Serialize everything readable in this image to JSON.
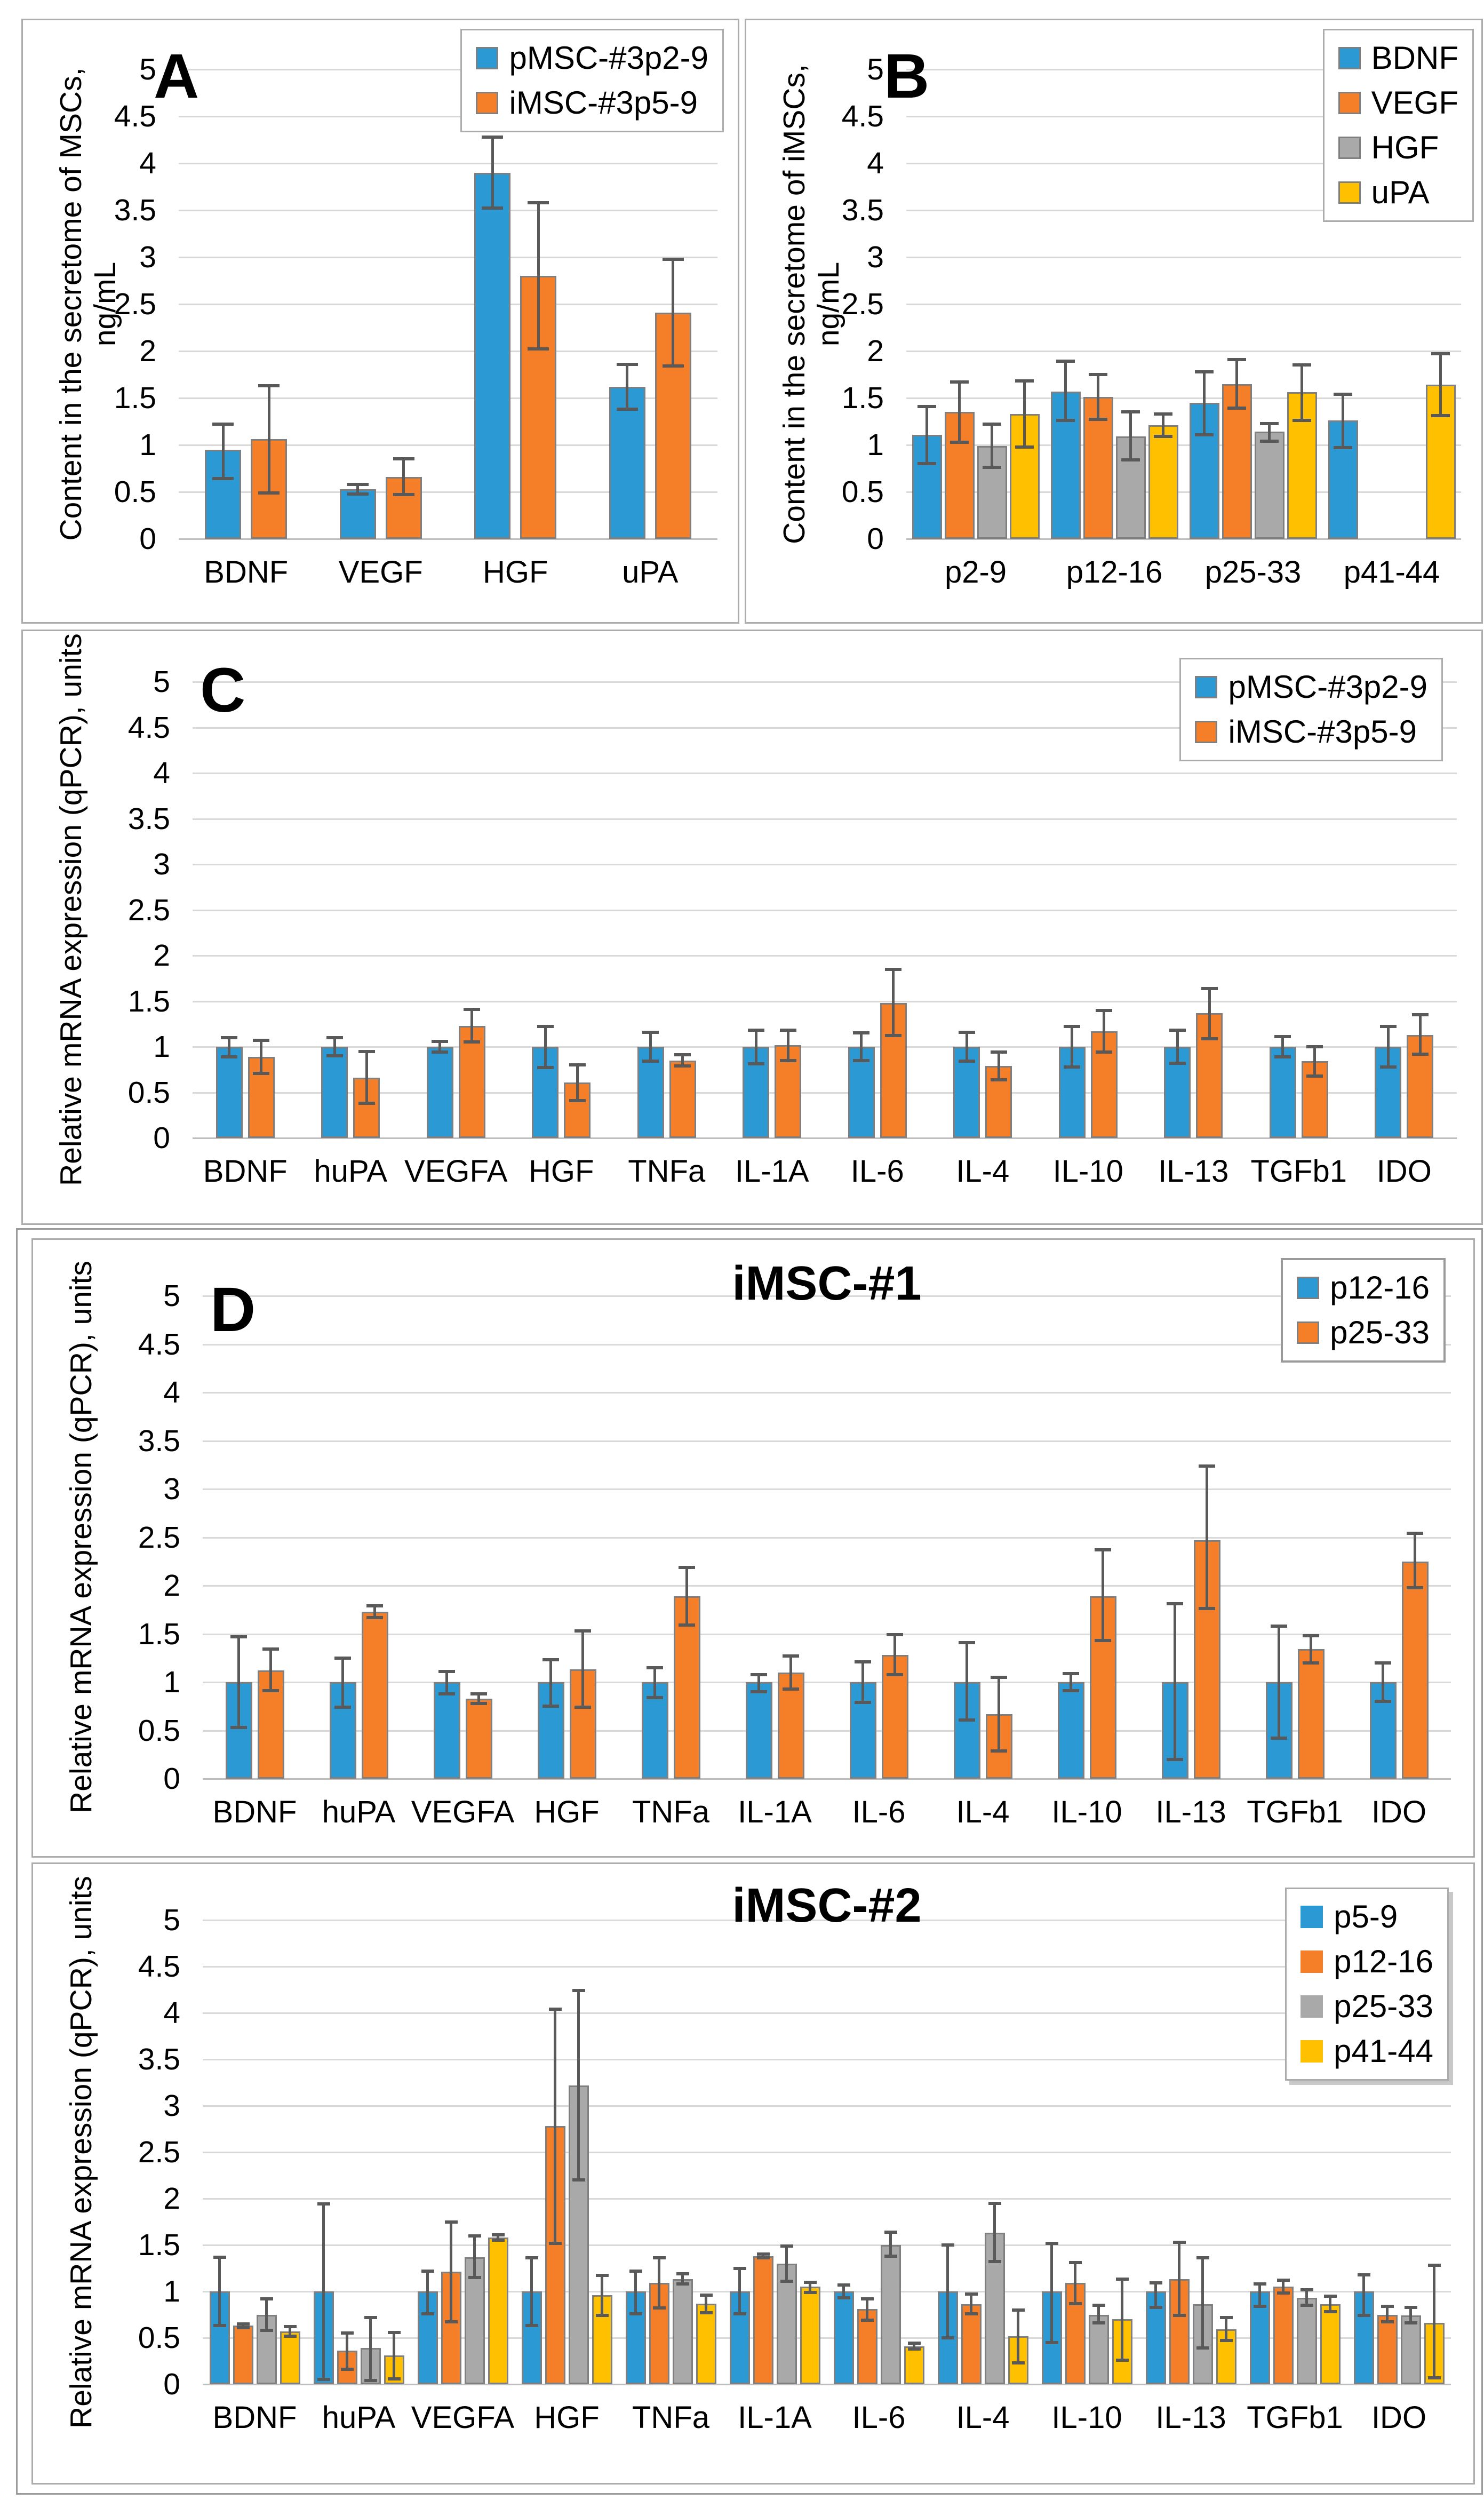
{
  "figure": {
    "description_labels": [
      "A",
      "B",
      "C",
      "D"
    ],
    "y_axis_range_all_panels": [
      0,
      5
    ],
    "y_tick_step": 0.5
  },
  "colors": {
    "blue": "#2B99D4",
    "orange": "#F57E28",
    "gray": "#A9A9A9",
    "yellow": "#FFC000",
    "bar_outline": "#7F7F7F",
    "error_bar": "#595959",
    "gridline": "#D9D9D9",
    "panel_border": "#ACACAC"
  },
  "chart_data": [
    {
      "id": "A",
      "type": "bar",
      "letter": "A",
      "title": "",
      "ylabel": "Content in the secretome of MSCs, ng/mL",
      "ylim": [
        0,
        5
      ],
      "ytick_step": 0.5,
      "grid": true,
      "legend_position": "top-right",
      "categories": [
        "BDNF",
        "VEGF",
        "HGF",
        "uPA"
      ],
      "series": [
        {
          "name": "pMSC-#3p2-9",
          "color": "blue",
          "values": [
            0.95,
            0.53,
            3.9,
            1.62
          ],
          "err_lo": [
            0.64,
            0.48,
            3.52,
            1.38
          ],
          "err_hi": [
            1.22,
            0.58,
            4.28,
            1.86
          ]
        },
        {
          "name": "iMSC-#3p5-9",
          "color": "orange",
          "values": [
            1.06,
            0.66,
            2.8,
            2.41
          ],
          "err_lo": [
            0.49,
            0.47,
            2.02,
            1.84
          ],
          "err_hi": [
            1.63,
            0.85,
            3.58,
            2.98
          ]
        }
      ]
    },
    {
      "id": "B",
      "type": "bar",
      "letter": "B",
      "title": "",
      "ylabel": "Content in the secretome of iMSCs, ng/mL",
      "ylim": [
        0,
        5
      ],
      "ytick_step": 0.5,
      "grid": true,
      "legend_position": "top-right",
      "categories": [
        "p2-9",
        "p12-16",
        "p25-33",
        "p41-44"
      ],
      "series": [
        {
          "name": "BDNF",
          "color": "blue",
          "values": [
            1.11,
            1.57,
            1.45,
            1.26
          ],
          "err_lo": [
            0.8,
            1.26,
            1.11,
            0.97
          ],
          "err_hi": [
            1.41,
            1.89,
            1.78,
            1.54
          ]
        },
        {
          "name": "VEGF",
          "color": "orange",
          "values": [
            1.35,
            1.51,
            1.65,
            null
          ],
          "err_lo": [
            1.03,
            1.27,
            1.39,
            null
          ],
          "err_hi": [
            1.67,
            1.75,
            1.91,
            null
          ]
        },
        {
          "name": "HGF",
          "color": "gray",
          "values": [
            0.99,
            1.09,
            1.14,
            null
          ],
          "err_lo": [
            0.76,
            0.84,
            1.04,
            null
          ],
          "err_hi": [
            1.22,
            1.35,
            1.23,
            null
          ]
        },
        {
          "name": "uPA",
          "color": "yellow",
          "values": [
            1.33,
            1.21,
            1.56,
            1.64
          ],
          "err_lo": [
            0.98,
            1.09,
            1.26,
            1.31
          ],
          "err_hi": [
            1.68,
            1.33,
            1.85,
            1.97
          ]
        }
      ]
    },
    {
      "id": "C",
      "type": "bar",
      "letter": "C",
      "title": "",
      "ylabel": "Relative mRNA expression (qPCR), units",
      "ylim": [
        0,
        5
      ],
      "ytick_step": 0.5,
      "grid": true,
      "legend_position": "top-right",
      "categories": [
        "BDNF",
        "huPA",
        "VEGFA",
        "HGF",
        "TNFa",
        "IL-1A",
        "IL-6",
        "IL-4",
        "IL-10",
        "IL-13",
        "TGFb1",
        "IDO"
      ],
      "series": [
        {
          "name": "pMSC-#3p2-9",
          "color": "blue",
          "values": [
            1.0,
            1.0,
            1.0,
            1.0,
            1.0,
            1.0,
            1.0,
            1.0,
            1.0,
            1.0,
            1.0,
            1.0
          ],
          "err_lo": [
            0.89,
            0.9,
            0.94,
            0.77,
            0.84,
            0.81,
            0.85,
            0.84,
            0.78,
            0.82,
            0.89,
            0.78
          ],
          "err_hi": [
            1.1,
            1.1,
            1.06,
            1.22,
            1.16,
            1.18,
            1.15,
            1.16,
            1.22,
            1.18,
            1.11,
            1.22
          ]
        },
        {
          "name": "iMSC-#3p5-9",
          "color": "orange",
          "values": [
            0.89,
            0.66,
            1.23,
            0.61,
            0.85,
            1.02,
            1.48,
            0.79,
            1.17,
            1.37,
            0.84,
            1.13
          ],
          "err_lo": [
            0.71,
            0.38,
            1.05,
            0.41,
            0.79,
            0.85,
            1.12,
            0.64,
            0.94,
            1.09,
            0.68,
            0.92
          ],
          "err_hi": [
            1.07,
            0.95,
            1.41,
            0.8,
            0.91,
            1.18,
            1.85,
            0.94,
            1.4,
            1.64,
            1.0,
            1.35
          ]
        }
      ]
    },
    {
      "id": "D",
      "type": "bar",
      "letter": "D",
      "title": "iMSC-#1",
      "ylabel": "Relative mRNA expression (qPCR), units",
      "ylim": [
        0,
        5
      ],
      "ytick_step": 0.5,
      "grid": true,
      "legend_position": "top-right",
      "categories": [
        "BDNF",
        "huPA",
        "VEGFA",
        "HGF",
        "TNFa",
        "IL-1A",
        "IL-6",
        "IL-4",
        "IL-10",
        "IL-13",
        "TGFb1",
        "IDO"
      ],
      "series": [
        {
          "name": "p12-16",
          "color": "blue",
          "values": [
            1.0,
            1.0,
            1.0,
            1.0,
            1.0,
            1.0,
            1.0,
            1.0,
            1.0,
            1.0,
            1.0,
            1.0
          ],
          "err_lo": [
            0.53,
            0.74,
            0.88,
            0.75,
            0.84,
            0.9,
            0.79,
            0.61,
            0.91,
            0.2,
            0.42,
            0.8
          ],
          "err_hi": [
            1.47,
            1.25,
            1.11,
            1.23,
            1.15,
            1.08,
            1.21,
            1.41,
            1.09,
            1.81,
            1.58,
            1.2
          ]
        },
        {
          "name": "p25-33",
          "color": "orange",
          "values": [
            1.12,
            1.73,
            0.83,
            1.13,
            1.89,
            1.1,
            1.28,
            0.67,
            1.89,
            2.47,
            1.34,
            2.25
          ],
          "err_lo": [
            0.91,
            1.67,
            0.78,
            0.74,
            1.59,
            0.93,
            1.08,
            0.29,
            1.43,
            1.76,
            1.2,
            1.98
          ],
          "err_hi": [
            1.34,
            1.79,
            0.88,
            1.53,
            2.19,
            1.27,
            1.49,
            1.05,
            2.37,
            3.24,
            1.48,
            2.54
          ]
        }
      ]
    },
    {
      "id": "E",
      "type": "bar",
      "letter": "",
      "title": "iMSC-#2",
      "ylabel": "Relative mRNA expression (qPCR), units",
      "ylim": [
        0,
        5
      ],
      "ytick_step": 0.5,
      "grid": true,
      "legend_position": "top-right",
      "categories": [
        "BDNF",
        "huPA",
        "VEGFA",
        "HGF",
        "TNFa",
        "IL-1A",
        "IL-6",
        "IL-4",
        "IL-10",
        "IL-13",
        "TGFb1",
        "IDO"
      ],
      "series": [
        {
          "name": "p5-9",
          "color": "blue",
          "values": [
            1.0,
            1.0,
            1.0,
            1.0,
            1.0,
            1.0,
            1.0,
            1.0,
            1.0,
            1.0,
            1.0,
            1.0
          ],
          "err_lo": [
            0.63,
            0.05,
            0.76,
            0.63,
            0.76,
            0.76,
            0.93,
            0.5,
            0.45,
            0.83,
            0.84,
            0.74
          ],
          "err_hi": [
            1.37,
            1.94,
            1.22,
            1.36,
            1.22,
            1.25,
            1.07,
            1.5,
            1.52,
            1.09,
            1.08,
            1.18
          ]
        },
        {
          "name": "p12-16",
          "color": "orange",
          "values": [
            0.63,
            0.36,
            1.21,
            2.78,
            1.09,
            1.38,
            0.81,
            0.86,
            1.09,
            1.13,
            1.05,
            0.75
          ],
          "err_lo": [
            0.61,
            0.16,
            0.67,
            1.52,
            0.82,
            1.36,
            0.69,
            0.76,
            0.87,
            0.74,
            0.98,
            0.67
          ],
          "err_hi": [
            0.65,
            0.55,
            1.75,
            4.04,
            1.36,
            1.4,
            0.92,
            0.97,
            1.31,
            1.53,
            1.12,
            0.84
          ]
        },
        {
          "name": "p25-33",
          "color": "gray",
          "values": [
            0.75,
            0.39,
            1.37,
            3.22,
            1.13,
            1.3,
            1.5,
            1.63,
            0.75,
            0.86,
            0.93,
            0.74
          ],
          "err_lo": [
            0.58,
            0.04,
            1.15,
            2.2,
            1.08,
            1.11,
            1.38,
            1.32,
            0.66,
            0.39,
            0.85,
            0.66
          ],
          "err_hi": [
            0.92,
            0.72,
            1.6,
            4.24,
            1.19,
            1.49,
            1.64,
            1.95,
            0.85,
            1.36,
            1.02,
            0.83
          ]
        },
        {
          "name": "p41-44",
          "color": "yellow",
          "values": [
            0.57,
            0.31,
            1.58,
            0.96,
            0.87,
            1.05,
            0.41,
            0.52,
            0.7,
            0.59,
            0.86,
            0.66
          ],
          "err_lo": [
            0.52,
            0.06,
            1.55,
            0.74,
            0.77,
            0.99,
            0.38,
            0.23,
            0.26,
            0.47,
            0.78,
            0.07
          ],
          "err_hi": [
            0.62,
            0.56,
            1.61,
            1.17,
            0.96,
            1.1,
            0.44,
            0.8,
            1.13,
            0.72,
            0.95,
            1.28
          ]
        }
      ]
    }
  ]
}
